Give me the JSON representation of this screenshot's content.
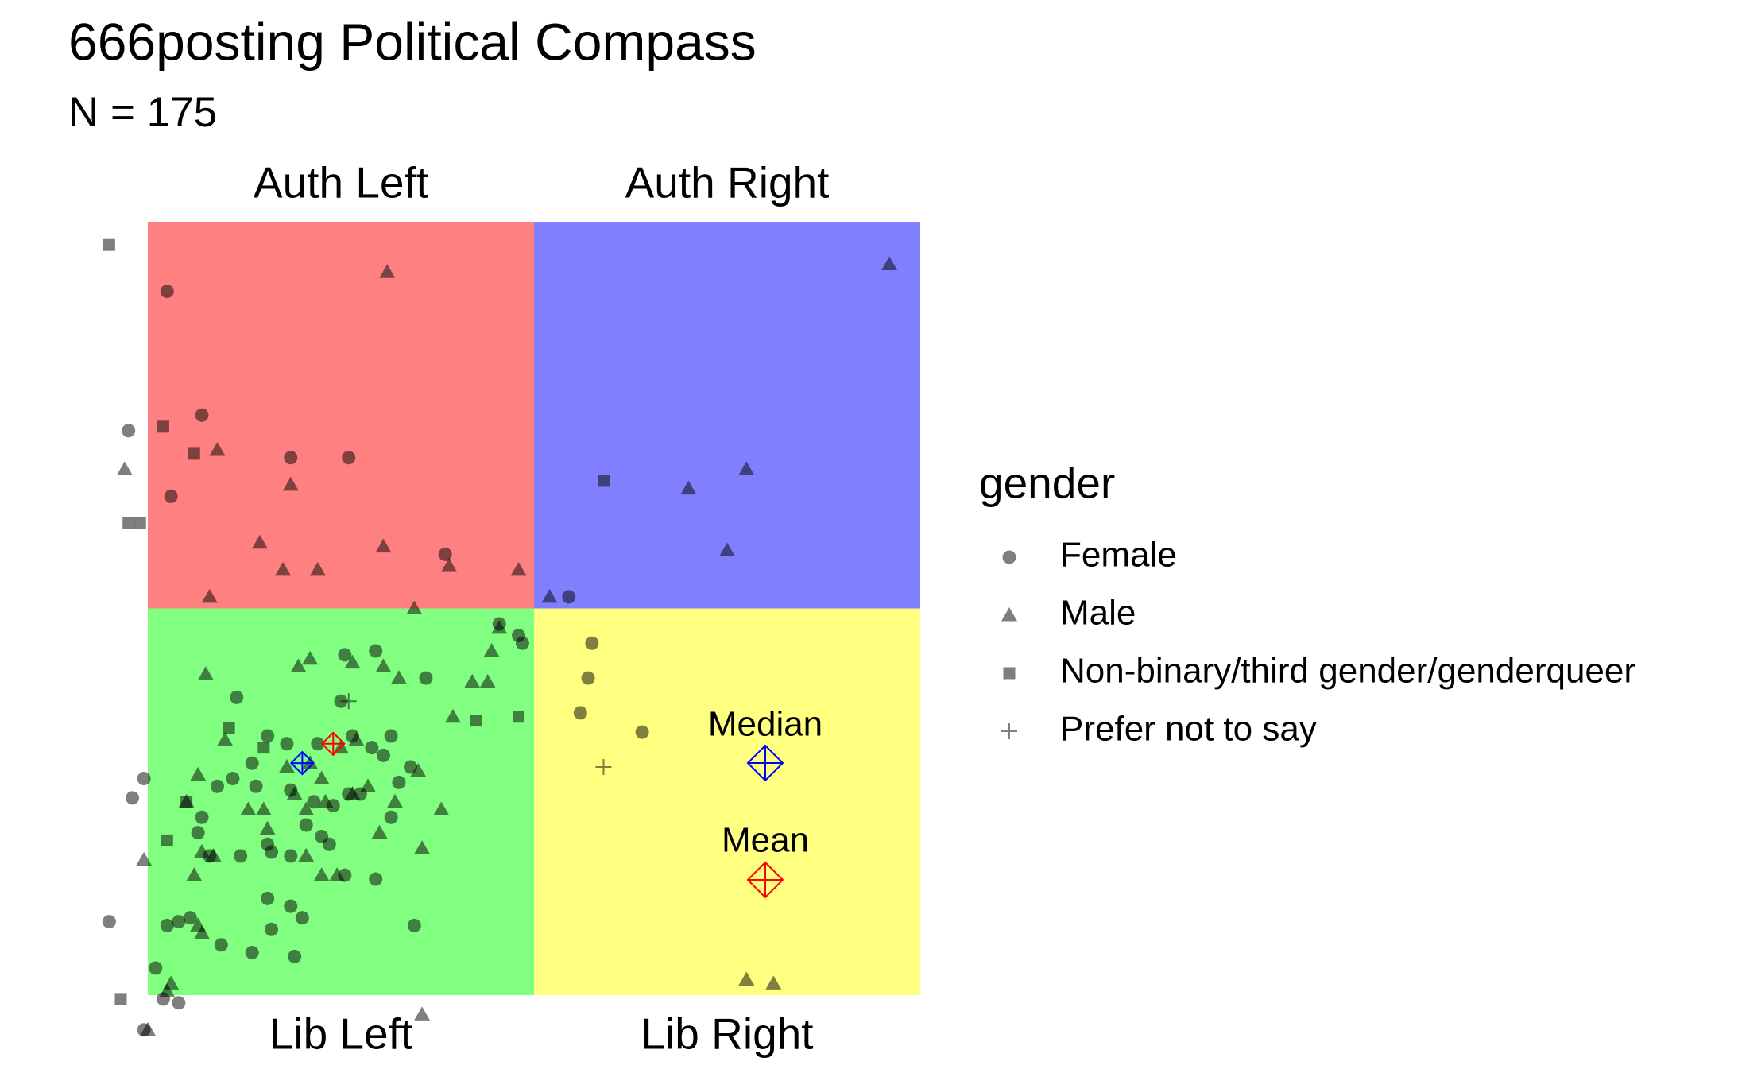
{
  "chart_data": {
    "type": "scatter",
    "title": "666posting Political Compass",
    "subtitle": "N = 175",
    "xlim": [
      -10,
      10
    ],
    "ylim": [
      -10,
      10
    ],
    "quadrants": [
      {
        "label": "Auth Left",
        "color": "#ff8080"
      },
      {
        "label": "Auth Right",
        "color": "#8080ff"
      },
      {
        "label": "Lib Left",
        "color": "#80ff80"
      },
      {
        "label": "Lib Right",
        "color": "#ffff80"
      }
    ],
    "legend_title": "gender",
    "point_opacity": 0.5,
    "series": [
      {
        "name": "Female",
        "marker": "circle",
        "color": "#000000",
        "x": [
          -9.5,
          -8.6,
          -6.3,
          -4.8,
          -9.4,
          -2.3,
          0.9,
          -10.5,
          1.5,
          1.4,
          1.2,
          2.8,
          -10.1,
          -10.4,
          -11.0,
          -9.6,
          -9.2,
          -10.1,
          -0.4,
          -0.3,
          -0.9,
          -3.1,
          -6.2,
          -7.3,
          -8.1,
          -6.8,
          -6.9,
          -6.3,
          -6.0,
          -9.2,
          -8.9,
          -9.8,
          -8.7,
          -8.4,
          -7.6,
          -8.6,
          -6.9,
          -6.3,
          -5.9,
          -5.5,
          -5.3,
          -4.9,
          -4.1,
          -3.7,
          -3.2,
          -3.5,
          -3.9,
          -4.5,
          -4.8,
          -5.2,
          -5.7,
          -6.3,
          -7.2,
          -8.2,
          -7.8,
          -6.9,
          -6.4,
          -5.6,
          -4.7,
          -5.0,
          -7.7,
          -4.9,
          -4.1,
          -2.8,
          -7.3,
          -3.7,
          -4.2,
          -9.5,
          -6.8
        ],
        "y": [
          8.2,
          5.0,
          3.9,
          3.9,
          2.9,
          1.4,
          0.3,
          4.6,
          -0.9,
          -1.8,
          -2.7,
          -3.2,
          -4.4,
          -4.9,
          -8.1,
          -10.1,
          -10.2,
          -10.9,
          -0.7,
          -0.9,
          -0.4,
          -8.2,
          -9.0,
          -8.9,
          -8.7,
          -8.3,
          -7.5,
          -7.7,
          -8.0,
          -8.1,
          -8.0,
          -9.3,
          -5.8,
          -6.4,
          -6.4,
          -5.4,
          -6.1,
          -6.4,
          -5.6,
          -5.9,
          -6.1,
          -6.9,
          -7.0,
          -5.4,
          -4.1,
          -4.5,
          -3.8,
          -4.8,
          -4.8,
          -5.1,
          -5.0,
          -4.7,
          -4.6,
          -4.6,
          -4.4,
          -3.3,
          -3.5,
          -3.5,
          -3.3,
          -2.4,
          -2.3,
          -1.2,
          -1.1,
          -1.8,
          -4.0,
          -3.3,
          -3.6,
          -8.2,
          -6.3
        ]
      },
      {
        "name": "Male",
        "marker": "triangle",
        "color": "#000000",
        "x": [
          -3.8,
          9.2,
          -8.2,
          -6.3,
          -7.1,
          -6.5,
          -5.6,
          -3.9,
          -2.2,
          -0.4,
          -8.4,
          0.4,
          4.0,
          5.5,
          5.0,
          -10.6,
          -3.1,
          -1.1,
          -1.6,
          -1.2,
          -2.1,
          -6.1,
          -5.8,
          -4.7,
          -3.9,
          -3.5,
          -8.5,
          -8.0,
          -8.7,
          -9.0,
          -6.4,
          -5.8,
          -5.0,
          -4.6,
          -6.2,
          -5.9,
          -5.5,
          -5.4,
          -4.7,
          -4.3,
          -3.6,
          -3.0,
          -2.4,
          -2.9,
          -4.0,
          -5.1,
          -5.5,
          -5.9,
          -6.9,
          -7.0,
          -7.4,
          -8.6,
          -8.3,
          -8.8,
          -10.1,
          -8.7,
          -8.6,
          -9.4,
          -9.5,
          -10.0,
          -2.9,
          5.5,
          6.2,
          -0.9
        ],
        "y": [
          8.7,
          8.9,
          4.1,
          3.2,
          1.7,
          1.0,
          1.0,
          1.6,
          1.1,
          1.0,
          0.3,
          0.3,
          3.1,
          3.6,
          1.5,
          3.6,
          0.0,
          -1.1,
          -1.9,
          -1.9,
          -2.8,
          -1.5,
          -1.3,
          -1.4,
          -1.5,
          -1.8,
          -1.7,
          -3.4,
          -4.3,
          -5.0,
          -4.1,
          -4.0,
          -3.6,
          -3.4,
          -4.8,
          -5.2,
          -4.4,
          -5.0,
          -4.8,
          -4.6,
          -5.0,
          -4.2,
          -5.2,
          -6.2,
          -5.8,
          -6.9,
          -6.9,
          -6.4,
          -5.7,
          -5.2,
          -5.2,
          -6.3,
          -6.4,
          -6.9,
          -6.5,
          -8.2,
          -8.4,
          -9.7,
          -9.9,
          -10.9,
          -10.5,
          -9.6,
          -9.7,
          -0.5
        ]
      },
      {
        "name": "Non-binary/third gender/genderqueer",
        "marker": "square",
        "color": "#000000",
        "x": [
          -11.0,
          -9.6,
          -8.8,
          -10.5,
          -10.2,
          1.8,
          -7.9,
          -7.0,
          -9.0,
          -9.5,
          -1.5,
          -0.4,
          -10.7
        ],
        "y": [
          9.4,
          4.7,
          4.0,
          2.2,
          2.2,
          3.3,
          -3.1,
          -3.6,
          -5.0,
          -6.0,
          -2.9,
          -2.8,
          -10.1
        ]
      },
      {
        "name": "Prefer not to say",
        "marker": "plus",
        "color": "#000000",
        "x": [
          -4.8,
          1.8
        ],
        "y": [
          -2.4,
          -4.1
        ]
      }
    ],
    "summary": [
      {
        "name": "Median",
        "color": "#0000ff",
        "x": -6.0,
        "y": -4.0
      },
      {
        "name": "Mean",
        "color": "#ff0000",
        "x": -5.2,
        "y": -3.5
      }
    ]
  }
}
